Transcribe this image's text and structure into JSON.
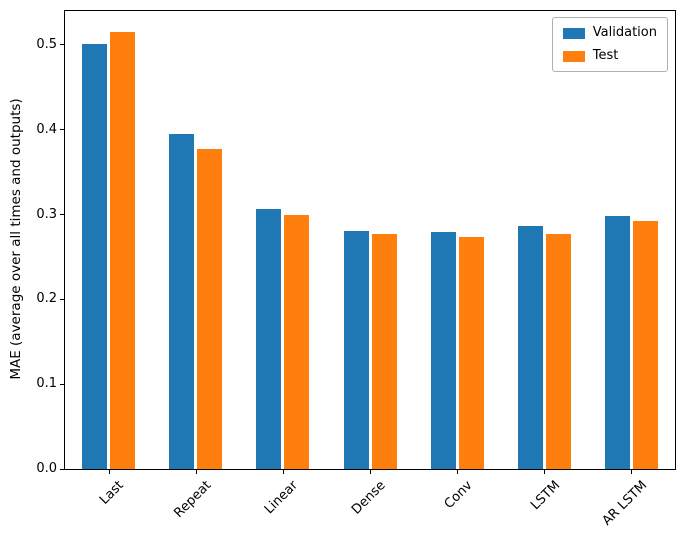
{
  "chart_data": {
    "type": "bar",
    "title": "",
    "xlabel": "",
    "ylabel": "MAE (average over all times and outputs)",
    "categories": [
      "Last",
      "Repeat",
      "Linear",
      "Dense",
      "Conv",
      "LSTM",
      "AR LSTM"
    ],
    "series": [
      {
        "name": "Validation",
        "color": "#1f77b4",
        "values": [
          0.501,
          0.395,
          0.306,
          0.281,
          0.28,
          0.286,
          0.298
        ]
      },
      {
        "name": "Test",
        "color": "#ff7f0e",
        "values": [
          0.515,
          0.377,
          0.299,
          0.277,
          0.274,
          0.277,
          0.292
        ]
      }
    ],
    "ylim": [
      0,
      0.54
    ],
    "yticks": [
      0.0,
      0.1,
      0.2,
      0.3,
      0.4,
      0.5
    ],
    "grid": false,
    "legend_position": "upper right"
  }
}
